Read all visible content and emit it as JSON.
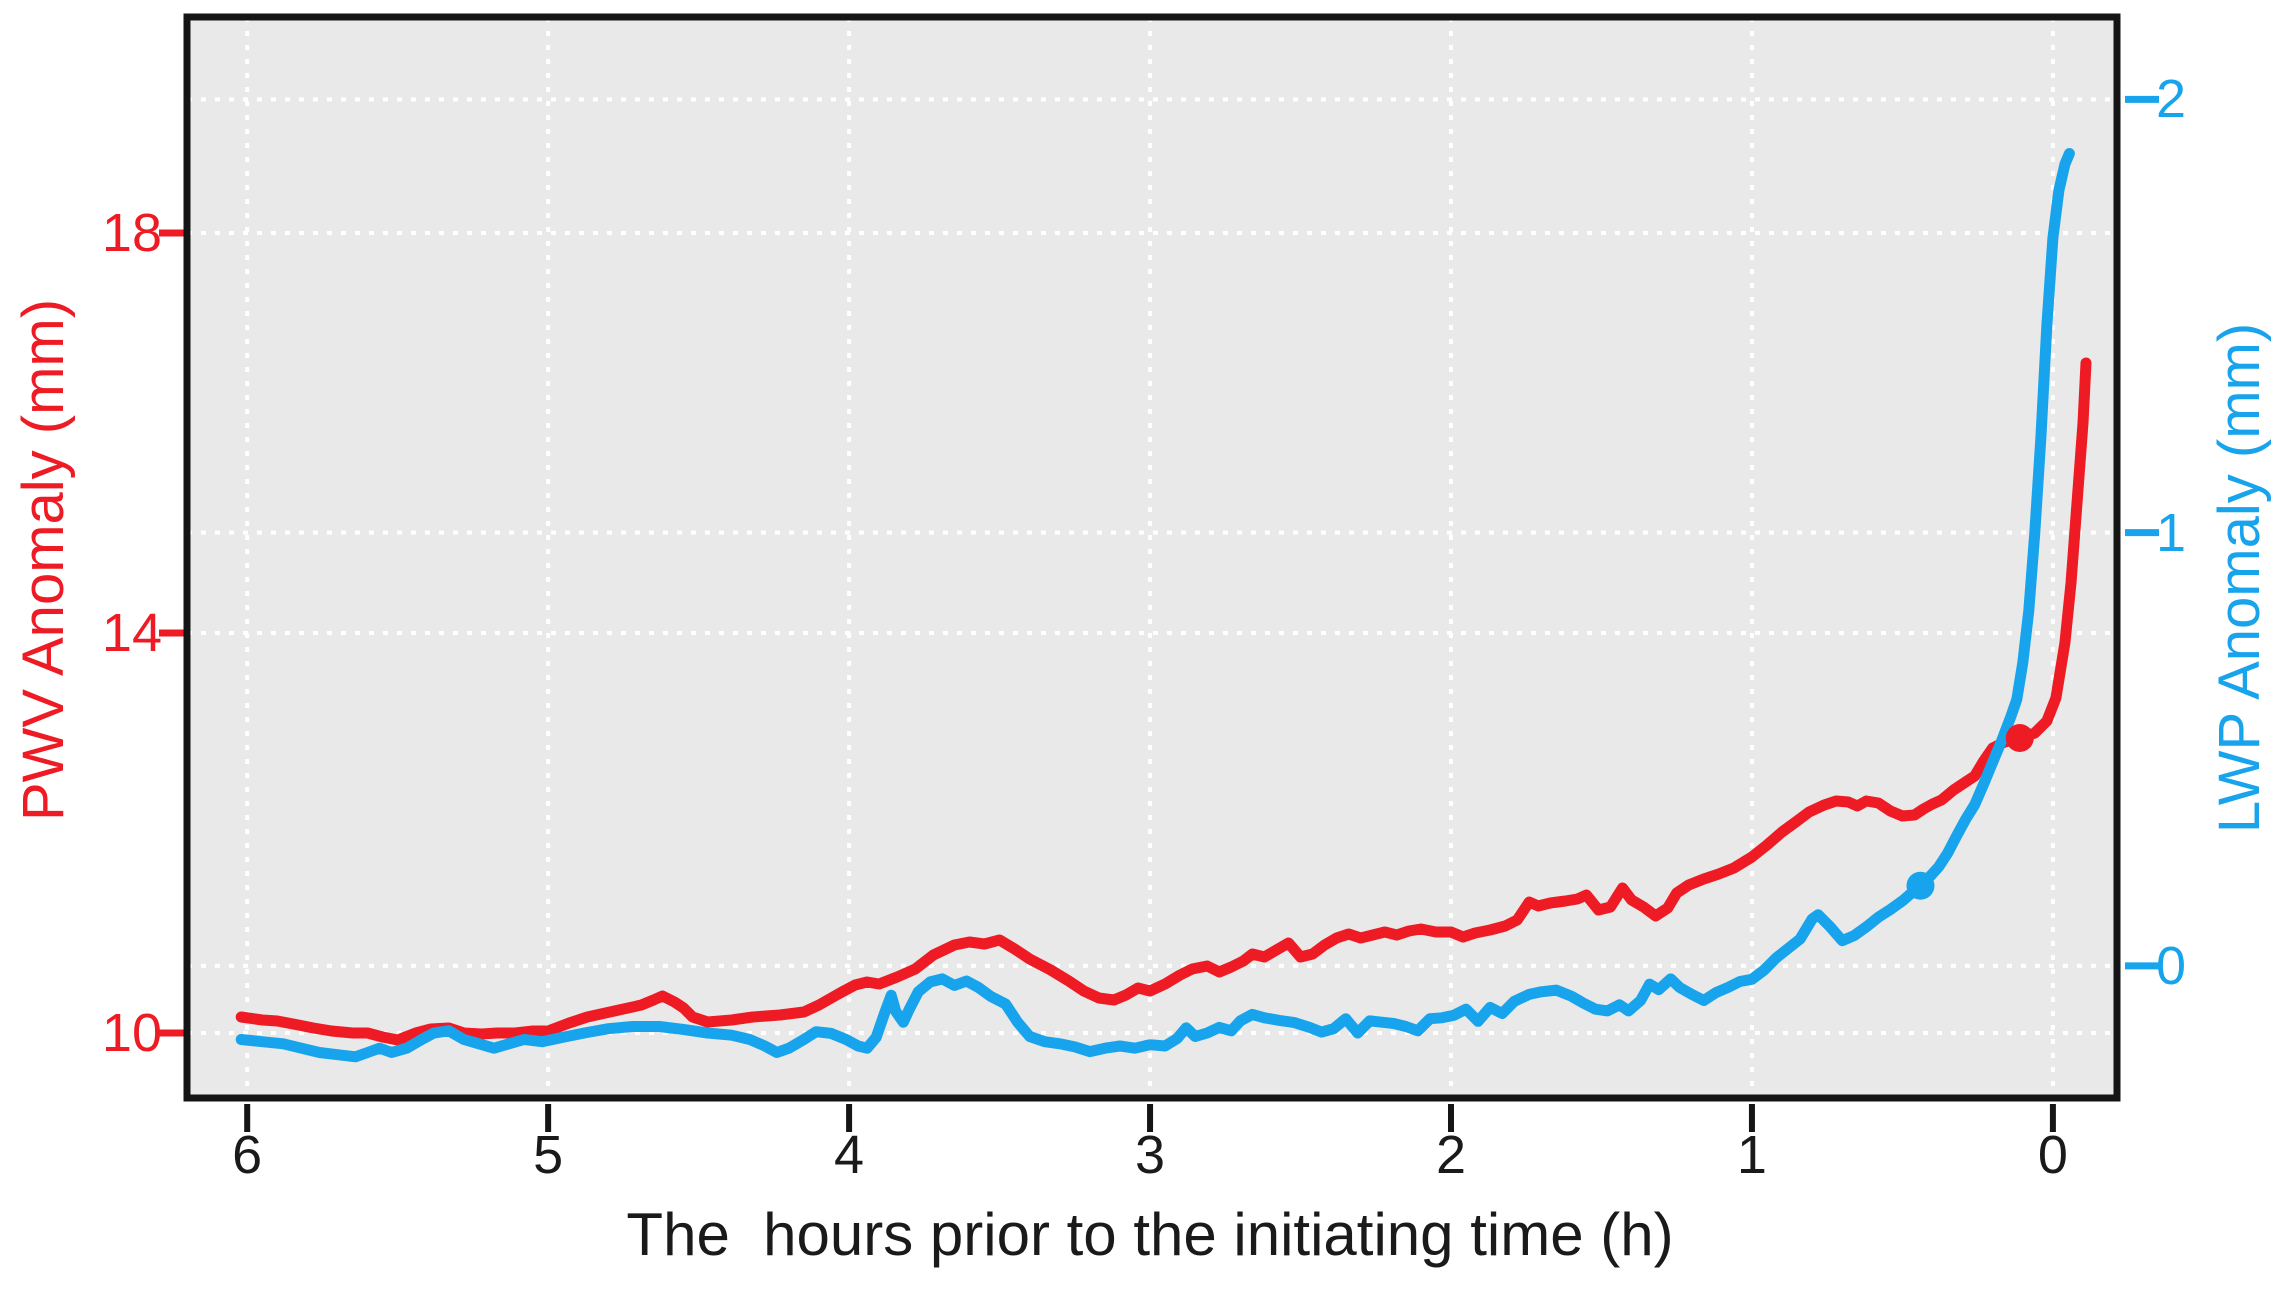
{
  "figure": {
    "x_title": "The  hours prior to the initiating time (h)",
    "left_axis_title": "PWV Anomaly (mm)",
    "right_axis_title": "LWP Anomaly (mm)"
  },
  "colors": {
    "pwv_red": "#ee1b24",
    "lwp_blue": "#18a4ec",
    "plot_background": "#e9e9e9",
    "gridline": "#ffffff",
    "frame": "#151515"
  },
  "chart_data": {
    "type": "line",
    "title": "",
    "xlabel": "The  hours prior to the initiating time (h)",
    "x_axis": {
      "ticks": [
        6,
        5,
        4,
        3,
        2,
        1,
        0
      ],
      "xlim": [
        6.2,
        -0.213
      ],
      "note": "hours counting down toward initiation time at 0"
    },
    "left_y_axis": {
      "label": "PWV Anomaly (mm)",
      "ticks": [
        18,
        14,
        10
      ],
      "ylim": [
        9.35,
        20.16
      ],
      "color": "#ee1b24"
    },
    "right_y_axis": {
      "label": "LWP Anomaly (mm)",
      "ticks": [
        2,
        1,
        0
      ],
      "ylim": [
        -0.305,
        2.19
      ],
      "color": "#18a4ec"
    },
    "grid": true,
    "legend": "none",
    "plot_background": "#e9e9e9",
    "gridline_style": "white dotted",
    "series": [
      {
        "name": "PWV Anomaly",
        "axis": "left",
        "color": "#ee1b24",
        "line_width": 11,
        "marker_point": {
          "x": 0.11,
          "y": 12.95
        },
        "points": [
          [
            6.02,
            10.16
          ],
          [
            5.95,
            10.13
          ],
          [
            5.9,
            10.12
          ],
          [
            5.83,
            10.08
          ],
          [
            5.78,
            10.05
          ],
          [
            5.72,
            10.02
          ],
          [
            5.65,
            10.0
          ],
          [
            5.6,
            10.0
          ],
          [
            5.55,
            9.96
          ],
          [
            5.5,
            9.93
          ],
          [
            5.44,
            10.0
          ],
          [
            5.39,
            10.04
          ],
          [
            5.33,
            10.05
          ],
          [
            5.28,
            10.0
          ],
          [
            5.22,
            9.99
          ],
          [
            5.17,
            10.0
          ],
          [
            5.11,
            10.0
          ],
          [
            5.05,
            10.02
          ],
          [
            5.0,
            10.02
          ],
          [
            4.93,
            10.1
          ],
          [
            4.87,
            10.16
          ],
          [
            4.78,
            10.22
          ],
          [
            4.69,
            10.28
          ],
          [
            4.65,
            10.33
          ],
          [
            4.62,
            10.37
          ],
          [
            4.58,
            10.31
          ],
          [
            4.55,
            10.25
          ],
          [
            4.52,
            10.16
          ],
          [
            4.47,
            10.11
          ],
          [
            4.43,
            10.12
          ],
          [
            4.39,
            10.13
          ],
          [
            4.32,
            10.16
          ],
          [
            4.23,
            10.18
          ],
          [
            4.15,
            10.21
          ],
          [
            4.1,
            10.28
          ],
          [
            4.03,
            10.4
          ],
          [
            3.98,
            10.48
          ],
          [
            3.94,
            10.51
          ],
          [
            3.9,
            10.49
          ],
          [
            3.84,
            10.56
          ],
          [
            3.78,
            10.64
          ],
          [
            3.72,
            10.78
          ],
          [
            3.65,
            10.88
          ],
          [
            3.6,
            10.91
          ],
          [
            3.55,
            10.89
          ],
          [
            3.5,
            10.93
          ],
          [
            3.45,
            10.84
          ],
          [
            3.4,
            10.74
          ],
          [
            3.33,
            10.63
          ],
          [
            3.27,
            10.52
          ],
          [
            3.22,
            10.42
          ],
          [
            3.17,
            10.35
          ],
          [
            3.12,
            10.33
          ],
          [
            3.08,
            10.38
          ],
          [
            3.04,
            10.45
          ],
          [
            3.0,
            10.42
          ],
          [
            2.95,
            10.49
          ],
          [
            2.9,
            10.58
          ],
          [
            2.86,
            10.64
          ],
          [
            2.81,
            10.67
          ],
          [
            2.77,
            10.61
          ],
          [
            2.73,
            10.66
          ],
          [
            2.69,
            10.72
          ],
          [
            2.66,
            10.79
          ],
          [
            2.62,
            10.76
          ],
          [
            2.58,
            10.83
          ],
          [
            2.54,
            10.9
          ],
          [
            2.5,
            10.76
          ],
          [
            2.46,
            10.79
          ],
          [
            2.42,
            10.88
          ],
          [
            2.38,
            10.95
          ],
          [
            2.34,
            10.99
          ],
          [
            2.3,
            10.95
          ],
          [
            2.26,
            10.98
          ],
          [
            2.22,
            11.01
          ],
          [
            2.18,
            10.98
          ],
          [
            2.14,
            11.02
          ],
          [
            2.1,
            11.04
          ],
          [
            2.05,
            11.01
          ],
          [
            2.0,
            11.01
          ],
          [
            1.96,
            10.96
          ],
          [
            1.92,
            11.0
          ],
          [
            1.87,
            11.03
          ],
          [
            1.82,
            11.07
          ],
          [
            1.78,
            11.13
          ],
          [
            1.74,
            11.31
          ],
          [
            1.71,
            11.27
          ],
          [
            1.67,
            11.3
          ],
          [
            1.62,
            11.32
          ],
          [
            1.58,
            11.34
          ],
          [
            1.55,
            11.38
          ],
          [
            1.51,
            11.23
          ],
          [
            1.47,
            11.26
          ],
          [
            1.43,
            11.45
          ],
          [
            1.4,
            11.33
          ],
          [
            1.36,
            11.26
          ],
          [
            1.32,
            11.17
          ],
          [
            1.28,
            11.25
          ],
          [
            1.25,
            11.4
          ],
          [
            1.21,
            11.48
          ],
          [
            1.16,
            11.54
          ],
          [
            1.11,
            11.59
          ],
          [
            1.06,
            11.65
          ],
          [
            1.0,
            11.76
          ],
          [
            0.95,
            11.88
          ],
          [
            0.9,
            12.01
          ],
          [
            0.85,
            12.12
          ],
          [
            0.81,
            12.21
          ],
          [
            0.76,
            12.28
          ],
          [
            0.72,
            12.32
          ],
          [
            0.68,
            12.31
          ],
          [
            0.65,
            12.27
          ],
          [
            0.62,
            12.32
          ],
          [
            0.58,
            12.3
          ],
          [
            0.54,
            12.22
          ],
          [
            0.5,
            12.17
          ],
          [
            0.46,
            12.18
          ],
          [
            0.43,
            12.24
          ],
          [
            0.4,
            12.29
          ],
          [
            0.37,
            12.33
          ],
          [
            0.33,
            12.43
          ],
          [
            0.29,
            12.51
          ],
          [
            0.26,
            12.57
          ],
          [
            0.23,
            12.72
          ],
          [
            0.2,
            12.85
          ],
          [
            0.16,
            12.91
          ],
          [
            0.11,
            12.95
          ],
          [
            0.06,
            13.0
          ],
          [
            0.02,
            13.12
          ],
          [
            -0.01,
            13.35
          ],
          [
            -0.04,
            13.9
          ],
          [
            -0.06,
            14.5
          ],
          [
            -0.08,
            15.3
          ],
          [
            -0.1,
            16.1
          ],
          [
            -0.11,
            16.7
          ]
        ]
      },
      {
        "name": "LWP Anomaly",
        "axis": "right",
        "color": "#18a4ec",
        "line_width": 11,
        "marker_point": {
          "x": 0.44,
          "y": 0.185
        },
        "points": [
          [
            6.02,
            -0.17
          ],
          [
            5.95,
            -0.175
          ],
          [
            5.88,
            -0.18
          ],
          [
            5.82,
            -0.19
          ],
          [
            5.76,
            -0.2
          ],
          [
            5.7,
            -0.205
          ],
          [
            5.64,
            -0.21
          ],
          [
            5.6,
            -0.2
          ],
          [
            5.56,
            -0.19
          ],
          [
            5.52,
            -0.2
          ],
          [
            5.47,
            -0.19
          ],
          [
            5.42,
            -0.17
          ],
          [
            5.38,
            -0.155
          ],
          [
            5.33,
            -0.15
          ],
          [
            5.28,
            -0.17
          ],
          [
            5.23,
            -0.18
          ],
          [
            5.18,
            -0.19
          ],
          [
            5.13,
            -0.18
          ],
          [
            5.08,
            -0.17
          ],
          [
            5.02,
            -0.175
          ],
          [
            4.95,
            -0.165
          ],
          [
            4.88,
            -0.155
          ],
          [
            4.8,
            -0.145
          ],
          [
            4.72,
            -0.14
          ],
          [
            4.63,
            -0.14
          ],
          [
            4.55,
            -0.147
          ],
          [
            4.47,
            -0.155
          ],
          [
            4.39,
            -0.16
          ],
          [
            4.33,
            -0.17
          ],
          [
            4.28,
            -0.185
          ],
          [
            4.24,
            -0.2
          ],
          [
            4.2,
            -0.19
          ],
          [
            4.15,
            -0.17
          ],
          [
            4.11,
            -0.152
          ],
          [
            4.06,
            -0.156
          ],
          [
            4.01,
            -0.17
          ],
          [
            3.97,
            -0.185
          ],
          [
            3.94,
            -0.19
          ],
          [
            3.91,
            -0.165
          ],
          [
            3.88,
            -0.105
          ],
          [
            3.86,
            -0.068
          ],
          [
            3.845,
            -0.105
          ],
          [
            3.82,
            -0.13
          ],
          [
            3.8,
            -0.1
          ],
          [
            3.77,
            -0.06
          ],
          [
            3.73,
            -0.037
          ],
          [
            3.69,
            -0.03
          ],
          [
            3.65,
            -0.045
          ],
          [
            3.61,
            -0.035
          ],
          [
            3.57,
            -0.05
          ],
          [
            3.53,
            -0.07
          ],
          [
            3.48,
            -0.088
          ],
          [
            3.44,
            -0.13
          ],
          [
            3.4,
            -0.163
          ],
          [
            3.35,
            -0.175
          ],
          [
            3.3,
            -0.18
          ],
          [
            3.25,
            -0.187
          ],
          [
            3.2,
            -0.198
          ],
          [
            3.15,
            -0.19
          ],
          [
            3.1,
            -0.185
          ],
          [
            3.05,
            -0.19
          ],
          [
            3.0,
            -0.182
          ],
          [
            2.95,
            -0.185
          ],
          [
            2.91,
            -0.168
          ],
          [
            2.88,
            -0.143
          ],
          [
            2.85,
            -0.163
          ],
          [
            2.81,
            -0.155
          ],
          [
            2.77,
            -0.142
          ],
          [
            2.73,
            -0.15
          ],
          [
            2.7,
            -0.127
          ],
          [
            2.66,
            -0.112
          ],
          [
            2.62,
            -0.12
          ],
          [
            2.57,
            -0.126
          ],
          [
            2.52,
            -0.131
          ],
          [
            2.47,
            -0.142
          ],
          [
            2.43,
            -0.153
          ],
          [
            2.39,
            -0.145
          ],
          [
            2.35,
            -0.122
          ],
          [
            2.31,
            -0.155
          ],
          [
            2.27,
            -0.127
          ],
          [
            2.23,
            -0.13
          ],
          [
            2.19,
            -0.133
          ],
          [
            2.15,
            -0.14
          ],
          [
            2.11,
            -0.15
          ],
          [
            2.07,
            -0.122
          ],
          [
            2.03,
            -0.12
          ],
          [
            1.99,
            -0.114
          ],
          [
            1.95,
            -0.1
          ],
          [
            1.91,
            -0.128
          ],
          [
            1.87,
            -0.096
          ],
          [
            1.83,
            -0.11
          ],
          [
            1.79,
            -0.082
          ],
          [
            1.74,
            -0.066
          ],
          [
            1.7,
            -0.06
          ],
          [
            1.65,
            -0.056
          ],
          [
            1.6,
            -0.07
          ],
          [
            1.56,
            -0.086
          ],
          [
            1.52,
            -0.1
          ],
          [
            1.48,
            -0.104
          ],
          [
            1.44,
            -0.09
          ],
          [
            1.41,
            -0.104
          ],
          [
            1.37,
            -0.08
          ],
          [
            1.34,
            -0.042
          ],
          [
            1.31,
            -0.055
          ],
          [
            1.27,
            -0.03
          ],
          [
            1.24,
            -0.05
          ],
          [
            1.2,
            -0.066
          ],
          [
            1.16,
            -0.08
          ],
          [
            1.12,
            -0.062
          ],
          [
            1.08,
            -0.05
          ],
          [
            1.04,
            -0.036
          ],
          [
            1.0,
            -0.031
          ],
          [
            0.96,
            -0.01
          ],
          [
            0.92,
            0.018
          ],
          [
            0.88,
            0.04
          ],
          [
            0.84,
            0.062
          ],
          [
            0.8,
            0.108
          ],
          [
            0.78,
            0.118
          ],
          [
            0.74,
            0.09
          ],
          [
            0.7,
            0.058
          ],
          [
            0.66,
            0.07
          ],
          [
            0.62,
            0.09
          ],
          [
            0.58,
            0.112
          ],
          [
            0.54,
            0.13
          ],
          [
            0.5,
            0.15
          ],
          [
            0.47,
            0.168
          ],
          [
            0.44,
            0.185
          ],
          [
            0.41,
            0.205
          ],
          [
            0.38,
            0.228
          ],
          [
            0.35,
            0.26
          ],
          [
            0.32,
            0.3
          ],
          [
            0.29,
            0.338
          ],
          [
            0.26,
            0.372
          ],
          [
            0.23,
            0.42
          ],
          [
            0.2,
            0.47
          ],
          [
            0.17,
            0.52
          ],
          [
            0.14,
            0.575
          ],
          [
            0.12,
            0.615
          ],
          [
            0.1,
            0.7
          ],
          [
            0.08,
            0.82
          ],
          [
            0.06,
            1.0
          ],
          [
            0.04,
            1.22
          ],
          [
            0.02,
            1.48
          ],
          [
            0.0,
            1.68
          ],
          [
            -0.02,
            1.79
          ],
          [
            -0.04,
            1.85
          ],
          [
            -0.055,
            1.875
          ]
        ]
      }
    ]
  }
}
